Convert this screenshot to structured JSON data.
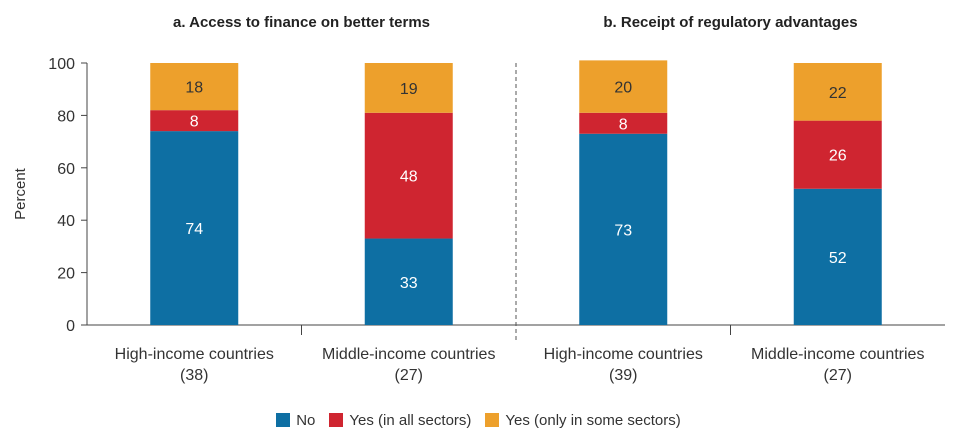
{
  "chart_data": {
    "type": "bar",
    "stacked": true,
    "ylabel": "Percent",
    "ylim": [
      0,
      100
    ],
    "yticks": [
      0,
      20,
      40,
      60,
      80,
      100
    ],
    "colors": {
      "No": "#0e6fa3",
      "Yes (in all sectors)": "#cf2530",
      "Yes (only in some sectors)": "#eda02c"
    },
    "legend": [
      "No",
      "Yes (in all sectors)",
      "Yes (only in some sectors)"
    ],
    "legend_position": "bottom",
    "panels": [
      {
        "title": "a. Access to finance on better terms",
        "categories": [
          {
            "name": "High-income countries",
            "count": "(38)"
          },
          {
            "name": "Middle-income countries",
            "count": "(27)"
          }
        ],
        "series": [
          {
            "name": "No",
            "values": [
              74,
              33
            ]
          },
          {
            "name": "Yes (in all sectors)",
            "values": [
              8,
              48
            ]
          },
          {
            "name": "Yes (only in some sectors)",
            "values": [
              18,
              19
            ]
          }
        ]
      },
      {
        "title": "b. Receipt of regulatory advantages",
        "categories": [
          {
            "name": "High-income countries",
            "count": "(39)"
          },
          {
            "name": "Middle-income countries",
            "count": "(27)"
          }
        ],
        "series": [
          {
            "name": "No",
            "values": [
              73,
              52
            ]
          },
          {
            "name": "Yes (in all sectors)",
            "values": [
              8,
              26
            ]
          },
          {
            "name": "Yes (only in some sectors)",
            "values": [
              20,
              22
            ]
          }
        ]
      }
    ]
  }
}
